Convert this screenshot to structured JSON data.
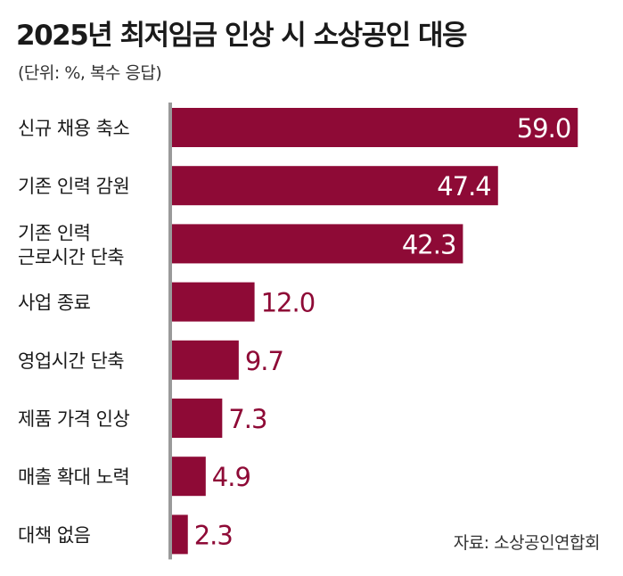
{
  "header": {
    "title": "2025년 최저임금 인상 시 소상공인 대응",
    "subtitle": "(단위: %, 복수 응답)"
  },
  "source": "자료: 소상공인연합회",
  "chart_data": {
    "type": "bar",
    "orientation": "horizontal",
    "title": "2025년 최저임금 인상 시 소상공인 대응",
    "subtitle": "(단위: %, 복수 응답)",
    "categories": [
      [
        "신규 채용 축소"
      ],
      [
        "기존 인력 감원"
      ],
      [
        "기존 인력",
        "근로시간 단축"
      ],
      [
        "사업 종료"
      ],
      [
        "영업시간 단축"
      ],
      [
        "제품 가격 인상"
      ],
      [
        "매출 확대 노력"
      ],
      [
        "대책 없음"
      ]
    ],
    "values": [
      59.0,
      47.4,
      42.3,
      12.0,
      9.7,
      7.3,
      4.9,
      2.3
    ],
    "value_labels": [
      "59.0",
      "47.4",
      "42.3",
      "12.0",
      "9.7",
      "7.3",
      "4.9",
      "2.3"
    ],
    "xlim": [
      0,
      60
    ],
    "grid": false,
    "legend": "none",
    "colors": {
      "bar": "#8e0a36",
      "label_inside": "#ffffff",
      "label_outside": "#8e0a36",
      "axis": "#9a9a9a"
    }
  }
}
